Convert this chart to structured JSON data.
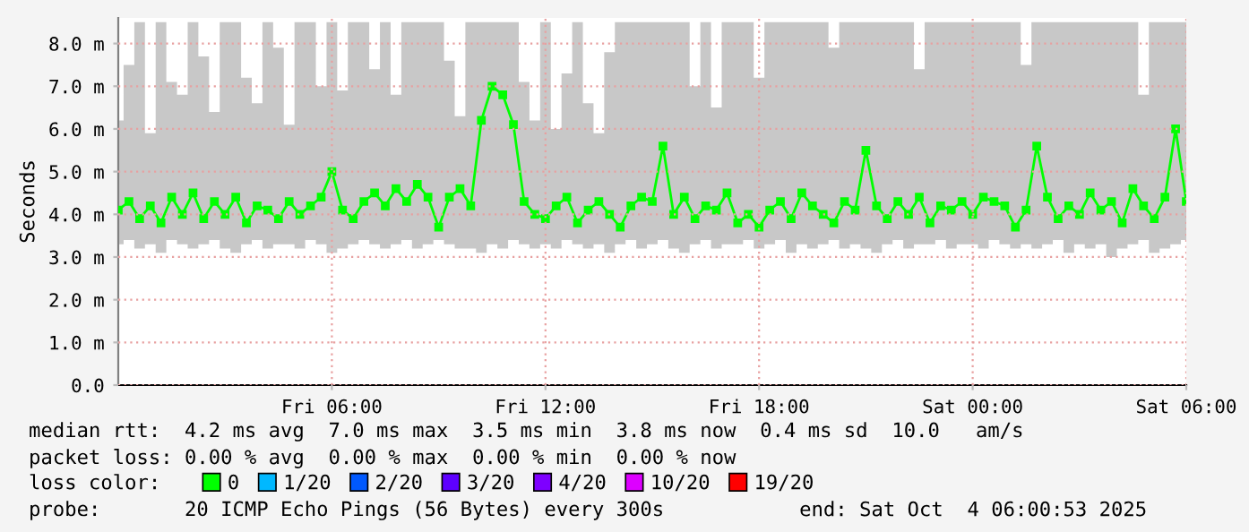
{
  "chart_data": {
    "type": "line",
    "ylabel": "Seconds",
    "x": [
      "2025-10-03T00:00",
      "2025-10-03T00:18",
      "2025-10-03T00:36",
      "2025-10-03T00:54",
      "2025-10-03T01:12",
      "2025-10-03T01:30",
      "2025-10-03T01:48",
      "2025-10-03T02:06",
      "2025-10-03T02:24",
      "2025-10-03T02:42",
      "2025-10-03T03:00",
      "2025-10-03T03:18",
      "2025-10-03T03:36",
      "2025-10-03T03:54",
      "2025-10-03T04:12",
      "2025-10-03T04:30",
      "2025-10-03T04:48",
      "2025-10-03T05:06",
      "2025-10-03T05:24",
      "2025-10-03T05:42",
      "2025-10-03T06:00",
      "2025-10-03T06:18",
      "2025-10-03T06:36",
      "2025-10-03T06:54",
      "2025-10-03T07:12",
      "2025-10-03T07:30",
      "2025-10-03T07:48",
      "2025-10-03T08:06",
      "2025-10-03T08:24",
      "2025-10-03T08:42",
      "2025-10-03T09:00",
      "2025-10-03T09:18",
      "2025-10-03T09:36",
      "2025-10-03T09:54",
      "2025-10-03T10:12",
      "2025-10-03T10:30",
      "2025-10-03T10:48",
      "2025-10-03T11:06",
      "2025-10-03T11:24",
      "2025-10-03T11:42",
      "2025-10-03T12:00",
      "2025-10-03T12:18",
      "2025-10-03T12:36",
      "2025-10-03T12:54",
      "2025-10-03T13:12",
      "2025-10-03T13:30",
      "2025-10-03T13:48",
      "2025-10-03T14:06",
      "2025-10-03T14:24",
      "2025-10-03T14:42",
      "2025-10-03T15:00",
      "2025-10-03T15:18",
      "2025-10-03T15:36",
      "2025-10-03T15:54",
      "2025-10-03T16:12",
      "2025-10-03T16:30",
      "2025-10-03T16:48",
      "2025-10-03T17:06",
      "2025-10-03T17:24",
      "2025-10-03T17:42",
      "2025-10-03T18:00",
      "2025-10-03T18:18",
      "2025-10-03T18:36",
      "2025-10-03T18:54",
      "2025-10-03T19:12",
      "2025-10-03T19:30",
      "2025-10-03T19:48",
      "2025-10-03T20:06",
      "2025-10-03T20:24",
      "2025-10-03T20:42",
      "2025-10-03T21:00",
      "2025-10-03T21:18",
      "2025-10-03T21:36",
      "2025-10-03T21:54",
      "2025-10-03T22:12",
      "2025-10-03T22:30",
      "2025-10-03T22:48",
      "2025-10-03T23:06",
      "2025-10-03T23:24",
      "2025-10-03T23:42",
      "2025-10-04T00:00",
      "2025-10-04T00:18",
      "2025-10-04T00:36",
      "2025-10-04T00:54",
      "2025-10-04T01:12",
      "2025-10-04T01:30",
      "2025-10-04T01:48",
      "2025-10-04T02:06",
      "2025-10-04T02:24",
      "2025-10-04T02:42",
      "2025-10-04T03:00",
      "2025-10-04T03:18",
      "2025-10-04T03:36",
      "2025-10-04T03:54",
      "2025-10-04T04:12",
      "2025-10-04T04:30",
      "2025-10-04T04:48",
      "2025-10-04T05:06",
      "2025-10-04T05:24",
      "2025-10-04T05:42",
      "2025-10-04T06:00"
    ],
    "series": [
      {
        "name": "0",
        "color": "#00ff00",
        "values": [
          4.1,
          4.3,
          3.9,
          4.2,
          3.8,
          4.4,
          4.0,
          4.5,
          3.9,
          4.3,
          4.0,
          4.4,
          3.8,
          4.2,
          4.1,
          3.9,
          4.3,
          4.0,
          4.2,
          4.4,
          5.0,
          4.1,
          3.9,
          4.3,
          4.5,
          4.2,
          4.6,
          4.3,
          4.7,
          4.4,
          3.7,
          4.4,
          4.6,
          4.2,
          6.2,
          7.0,
          6.8,
          6.1,
          4.3,
          4.0,
          3.9,
          4.2,
          4.4,
          3.8,
          4.1,
          4.3,
          4.0,
          3.7,
          4.2,
          4.4,
          4.3,
          5.6,
          4.0,
          4.4,
          3.9,
          4.2,
          4.1,
          4.5,
          3.8,
          4.0,
          3.7,
          4.1,
          4.3,
          3.9,
          4.5,
          4.2,
          4.0,
          3.8,
          4.3,
          4.1,
          5.5,
          4.2,
          3.9,
          4.3,
          4.0,
          4.4,
          3.8,
          4.2,
          4.1,
          4.3,
          4.0,
          4.4,
          4.3,
          4.2,
          3.7,
          4.1,
          5.6,
          4.4,
          3.9,
          4.2,
          4.0,
          4.5,
          4.1,
          4.3,
          3.8,
          4.6,
          4.2,
          3.9,
          4.4,
          6.0,
          4.3
        ],
        "lower": [
          3.3,
          3.4,
          3.2,
          3.3,
          3.1,
          3.4,
          3.3,
          3.2,
          3.3,
          3.4,
          3.2,
          3.1,
          3.3,
          3.4,
          3.2,
          3.3,
          3.3,
          3.2,
          3.4,
          3.3,
          3.1,
          3.2,
          3.3,
          3.4,
          3.3,
          3.2,
          3.3,
          3.4,
          3.2,
          3.3,
          3.4,
          3.3,
          3.2,
          3.2,
          3.1,
          3.3,
          3.2,
          3.4,
          3.3,
          3.2,
          3.3,
          3.2,
          3.4,
          3.3,
          3.2,
          3.3,
          3.1,
          3.3,
          3.4,
          3.2,
          3.3,
          3.4,
          3.2,
          3.1,
          3.3,
          3.4,
          3.2,
          3.3,
          3.3,
          3.4,
          3.2,
          3.3,
          3.4,
          3.1,
          3.3,
          3.2,
          3.3,
          3.4,
          3.2,
          3.3,
          3.2,
          3.1,
          3.3,
          3.4,
          3.2,
          3.3,
          3.3,
          3.4,
          3.2,
          3.3,
          3.3,
          3.2,
          3.4,
          3.3,
          3.2,
          3.3,
          3.2,
          3.3,
          3.4,
          3.1,
          3.3,
          3.2,
          3.3,
          3.0,
          3.2,
          3.3,
          3.4,
          3.1,
          3.2,
          3.3,
          3.4
        ],
        "upper": [
          6.2,
          7.5,
          8.5,
          5.9,
          8.5,
          7.1,
          6.8,
          8.5,
          7.7,
          6.4,
          8.5,
          8.5,
          7.2,
          6.6,
          8.5,
          7.9,
          6.1,
          8.5,
          8.5,
          7.0,
          8.5,
          6.9,
          8.5,
          8.5,
          7.4,
          8.5,
          6.8,
          8.5,
          8.5,
          8.5,
          8.5,
          7.6,
          6.3,
          8.5,
          8.5,
          8.5,
          8.5,
          8.5,
          7.1,
          6.2,
          8.5,
          6.0,
          7.3,
          8.5,
          6.6,
          5.9,
          7.8,
          8.5,
          8.5,
          8.5,
          8.5,
          8.5,
          8.5,
          8.5,
          7.0,
          8.5,
          6.5,
          8.5,
          8.5,
          8.5,
          7.2,
          8.5,
          8.5,
          8.5,
          8.5,
          8.5,
          8.5,
          7.9,
          8.5,
          8.5,
          8.5,
          8.5,
          8.5,
          8.5,
          8.5,
          7.4,
          8.5,
          8.5,
          8.5,
          8.5,
          8.5,
          8.5,
          8.5,
          8.5,
          8.5,
          7.5,
          8.5,
          8.5,
          8.5,
          8.5,
          8.5,
          8.5,
          8.5,
          8.5,
          8.5,
          8.5,
          6.8,
          8.5,
          8.5,
          8.5,
          8.5
        ]
      },
      {
        "name": "1/20",
        "color": "#00b8ff",
        "values": [
          null,
          null,
          null,
          null,
          null,
          null,
          null,
          null,
          null,
          null,
          null,
          null,
          null,
          null,
          null,
          null,
          null,
          null,
          null,
          null,
          null,
          null,
          null,
          null,
          null,
          null,
          null,
          null,
          null,
          null,
          null,
          null,
          null,
          null,
          null,
          null,
          null,
          null,
          null,
          null,
          null,
          null,
          null,
          null,
          null,
          null,
          null,
          null,
          null,
          null,
          null,
          null,
          null,
          null,
          null,
          null,
          null,
          null,
          null,
          null,
          null,
          null,
          null,
          null,
          null,
          null,
          null,
          null,
          null,
          null,
          null,
          null,
          null,
          null,
          null,
          null,
          null,
          null,
          null,
          null,
          null,
          null,
          null,
          null,
          null,
          null,
          null,
          null,
          null,
          null,
          null,
          null,
          null,
          null,
          null,
          null,
          null,
          null,
          null,
          null,
          null
        ]
      },
      {
        "name": "2/20",
        "color": "#0059ff",
        "values": [
          null,
          null,
          null,
          null,
          null,
          null,
          null,
          null,
          null,
          null,
          null,
          null,
          null,
          null,
          null,
          null,
          null,
          null,
          null,
          null,
          null,
          null,
          null,
          null,
          null,
          null,
          null,
          null,
          null,
          null,
          null,
          null,
          null,
          null,
          null,
          null,
          null,
          null,
          null,
          null,
          null,
          null,
          null,
          null,
          null,
          null,
          null,
          null,
          null,
          null,
          null,
          null,
          null,
          null,
          null,
          null,
          null,
          null,
          null,
          null,
          null,
          null,
          null,
          null,
          null,
          null,
          null,
          null,
          null,
          null,
          null,
          null,
          null,
          null,
          null,
          null,
          null,
          null,
          null,
          null,
          null,
          null,
          null,
          null,
          null,
          null,
          null,
          null,
          null,
          null,
          null,
          null,
          null,
          null,
          null,
          null,
          null,
          null,
          null,
          null,
          null
        ]
      },
      {
        "name": "3/20",
        "color": "#5e00ff",
        "values": [
          null,
          null,
          null,
          null,
          null,
          null,
          null,
          null,
          null,
          null,
          null,
          null,
          null,
          null,
          null,
          null,
          null,
          null,
          null,
          null,
          null,
          null,
          null,
          null,
          null,
          null,
          null,
          null,
          null,
          null,
          null,
          null,
          null,
          null,
          null,
          null,
          null,
          null,
          null,
          null,
          null,
          null,
          null,
          null,
          null,
          null,
          null,
          null,
          null,
          null,
          null,
          null,
          null,
          null,
          null,
          null,
          null,
          null,
          null,
          null,
          null,
          null,
          null,
          null,
          null,
          null,
          null,
          null,
          null,
          null,
          null,
          null,
          null,
          null,
          null,
          null,
          null,
          null,
          null,
          null,
          null,
          null,
          null,
          null,
          null,
          null,
          null,
          null,
          null,
          null,
          null,
          null,
          null,
          null,
          null,
          null,
          null,
          null,
          null,
          null,
          null
        ]
      },
      {
        "name": "4/20",
        "color": "#7e00ff",
        "values": [
          null,
          null,
          null,
          null,
          null,
          null,
          null,
          null,
          null,
          null,
          null,
          null,
          null,
          null,
          null,
          null,
          null,
          null,
          null,
          null,
          null,
          null,
          null,
          null,
          null,
          null,
          null,
          null,
          null,
          null,
          null,
          null,
          null,
          null,
          null,
          null,
          null,
          null,
          null,
          null,
          null,
          null,
          null,
          null,
          null,
          null,
          null,
          null,
          null,
          null,
          null,
          null,
          null,
          null,
          null,
          null,
          null,
          null,
          null,
          null,
          null,
          null,
          null,
          null,
          null,
          null,
          null,
          null,
          null,
          null,
          null,
          null,
          null,
          null,
          null,
          null,
          null,
          null,
          null,
          null,
          null,
          null,
          null,
          null,
          null,
          null,
          null,
          null,
          null,
          null,
          null,
          null,
          null,
          null,
          null,
          null,
          null,
          null,
          null,
          null,
          null
        ]
      },
      {
        "name": "10/20",
        "color": "#dd00ff",
        "values": [
          null,
          null,
          null,
          null,
          null,
          null,
          null,
          null,
          null,
          null,
          null,
          null,
          null,
          null,
          null,
          null,
          null,
          null,
          null,
          null,
          null,
          null,
          null,
          null,
          null,
          null,
          null,
          null,
          null,
          null,
          null,
          null,
          null,
          null,
          null,
          null,
          null,
          null,
          null,
          null,
          null,
          null,
          null,
          null,
          null,
          null,
          null,
          null,
          null,
          null,
          null,
          null,
          null,
          null,
          null,
          null,
          null,
          null,
          null,
          null,
          null,
          null,
          null,
          null,
          null,
          null,
          null,
          null,
          null,
          null,
          null,
          null,
          null,
          null,
          null,
          null,
          null,
          null,
          null,
          null,
          null,
          null,
          null,
          null,
          null,
          null,
          null,
          null,
          null,
          null,
          null,
          null,
          null,
          null,
          null,
          null,
          null,
          null,
          null,
          null,
          null
        ]
      },
      {
        "name": "19/20",
        "color": "#ff0000",
        "values": [
          null,
          null,
          null,
          null,
          null,
          null,
          null,
          null,
          null,
          null,
          null,
          null,
          null,
          null,
          null,
          null,
          null,
          null,
          null,
          null,
          null,
          null,
          null,
          null,
          null,
          null,
          null,
          null,
          null,
          null,
          null,
          null,
          null,
          null,
          null,
          null,
          null,
          null,
          null,
          null,
          null,
          null,
          null,
          null,
          null,
          null,
          null,
          null,
          null,
          null,
          null,
          null,
          null,
          null,
          null,
          null,
          null,
          null,
          null,
          null,
          null,
          null,
          null,
          null,
          null,
          null,
          null,
          null,
          null,
          null,
          null,
          null,
          null,
          null,
          null,
          null,
          null,
          null,
          null,
          null,
          null,
          null,
          null,
          null,
          null,
          null,
          null,
          null,
          null,
          null,
          null,
          null,
          null,
          null,
          null,
          null,
          null,
          null,
          null,
          null,
          null
        ]
      }
    ],
    "marker": "square",
    "line_style": "solid",
    "grid": true,
    "legend": "bottom",
    "xlim": [
      "2025-10-03T00:00",
      "2025-10-04T06:00"
    ],
    "ylim": [
      0,
      8.6
    ],
    "xticks": [
      {
        "value": "2025-10-03T06:00",
        "label": "Fri 06:00"
      },
      {
        "value": "2025-10-03T12:00",
        "label": "Fri 12:00"
      },
      {
        "value": "2025-10-03T18:00",
        "label": "Fri 18:00"
      },
      {
        "value": "2025-10-04T00:00",
        "label": "Sat 00:00"
      },
      {
        "value": "2025-10-04T06:00",
        "label": "Sat 06:00"
      }
    ],
    "yticks": [
      {
        "value": 0,
        "label": "0.0"
      },
      {
        "value": 1,
        "label": "1.0 m"
      },
      {
        "value": 2,
        "label": "2.0 m"
      },
      {
        "value": 3,
        "label": "3.0 m"
      },
      {
        "value": 4,
        "label": "4.0 m"
      },
      {
        "value": 5,
        "label": "5.0 m"
      },
      {
        "value": 6,
        "label": "6.0 m"
      },
      {
        "value": 7,
        "label": "7.0 m"
      },
      {
        "value": 8,
        "label": "8.0 m"
      }
    ],
    "annotations": [
      "median rtt:  4.2 ms avg  7.0 ms max  3.5 ms min  3.8 ms now  0.4 ms sd  10.0   am/s",
      "packet loss: 0.00 % avg  0.00 % max  0.00 % min  0.00 % now",
      "loss color:",
      "probe:       20 ICMP Echo Pings (56 Bytes) every 300s",
      "end: Sat Oct  4 06:00:53 2025"
    ]
  }
}
